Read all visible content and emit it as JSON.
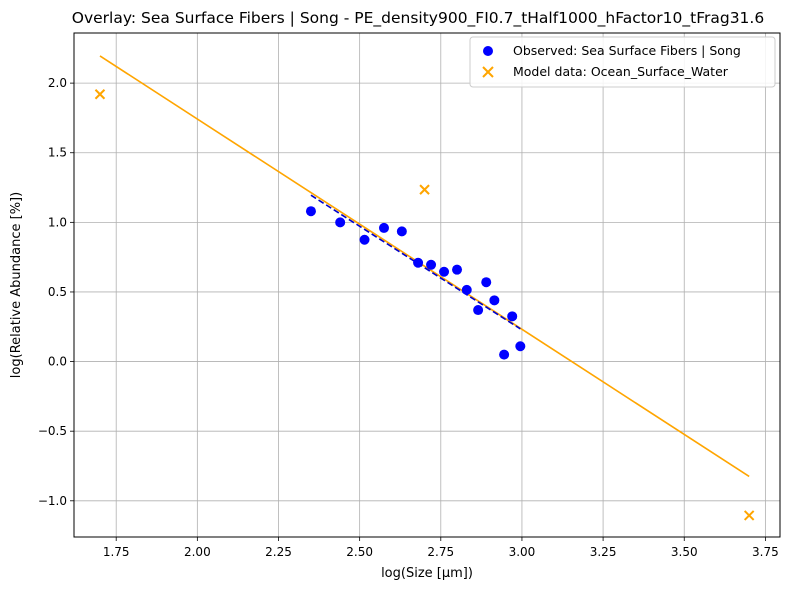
{
  "chart_data": {
    "type": "scatter",
    "title": "Overlay: Sea Surface Fibers | Song - PE_density900_FI0.7_tHalf1000_hFactor10_tFrag31.6",
    "xlabel": "log(Size [μm])",
    "ylabel": "log(Relative Abundance [%])",
    "xlim": [
      1.62,
      3.795
    ],
    "ylim": [
      -1.26,
      2.36
    ],
    "xticks": [
      1.75,
      2.0,
      2.25,
      2.5,
      2.75,
      3.0,
      3.25,
      3.5,
      3.75
    ],
    "xtick_labels": [
      "1.75",
      "2.00",
      "2.25",
      "2.50",
      "2.75",
      "3.00",
      "3.25",
      "3.50",
      "3.75"
    ],
    "yticks": [
      -1.0,
      -0.5,
      0.0,
      0.5,
      1.0,
      1.5,
      2.0
    ],
    "ytick_labels": [
      "−1.0",
      "−0.5",
      "0.0",
      "0.5",
      "1.0",
      "1.5",
      "2.0"
    ],
    "grid": true,
    "legend_position": "top-right",
    "series": [
      {
        "name": "Observed: Sea Surface Fibers | Song",
        "kind": "scatter",
        "marker": "circle",
        "color": "#0000ff",
        "x": [
          2.35,
          2.44,
          2.515,
          2.575,
          2.63,
          2.68,
          2.72,
          2.76,
          2.8,
          2.83,
          2.865,
          2.89,
          2.915,
          2.945,
          2.97,
          2.995
        ],
        "y": [
          1.08,
          1.0,
          0.875,
          0.96,
          0.935,
          0.71,
          0.695,
          0.645,
          0.66,
          0.515,
          0.37,
          0.57,
          0.44,
          0.05,
          0.325,
          0.11
        ]
      },
      {
        "name": "Model data: Ocean_Surface_Water",
        "kind": "scatter",
        "marker": "x",
        "color": "#ffa500",
        "x": [
          1.7,
          2.7,
          3.7
        ],
        "y": [
          1.92,
          1.235,
          -1.105
        ]
      },
      {
        "kind": "line",
        "style": "solid",
        "color": "#ffa500",
        "x": [
          1.7,
          3.7
        ],
        "y": [
          2.195,
          -0.825
        ]
      },
      {
        "kind": "line",
        "style": "dashed",
        "color": "#0000cc",
        "x": [
          2.35,
          2.995
        ],
        "y": [
          1.195,
          0.235
        ]
      }
    ]
  }
}
